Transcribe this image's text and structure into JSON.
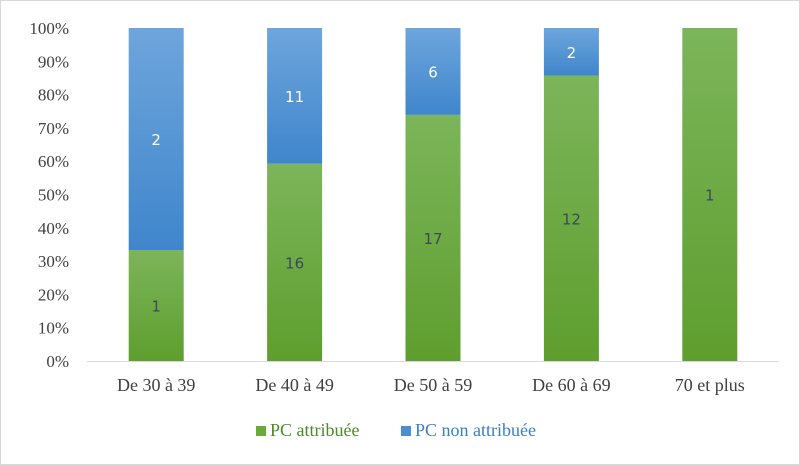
{
  "chart_data": {
    "type": "bar",
    "stacked": "percent",
    "categories": [
      "De 30 à 39",
      "De 40 à 49",
      "De 50 à 59",
      "De 60 à 69",
      "70 et plus"
    ],
    "series": [
      {
        "name": "PC attribuée",
        "values": [
          1,
          16,
          17,
          12,
          1
        ],
        "color": "#6aaa3a"
      },
      {
        "name": "PC non attribuée",
        "values": [
          2,
          11,
          6,
          2,
          0
        ],
        "color": "#4a8fd1"
      }
    ],
    "y_ticks": [
      "0%",
      "10%",
      "20%",
      "30%",
      "40%",
      "50%",
      "60%",
      "70%",
      "80%",
      "90%",
      "100%"
    ],
    "ylim": [
      0,
      100
    ],
    "grid": false,
    "legend": "bottom",
    "data_label_colors": {
      "PC attribuée": "#3a4a5a",
      "PC non attribuée": "#ffffff"
    }
  }
}
